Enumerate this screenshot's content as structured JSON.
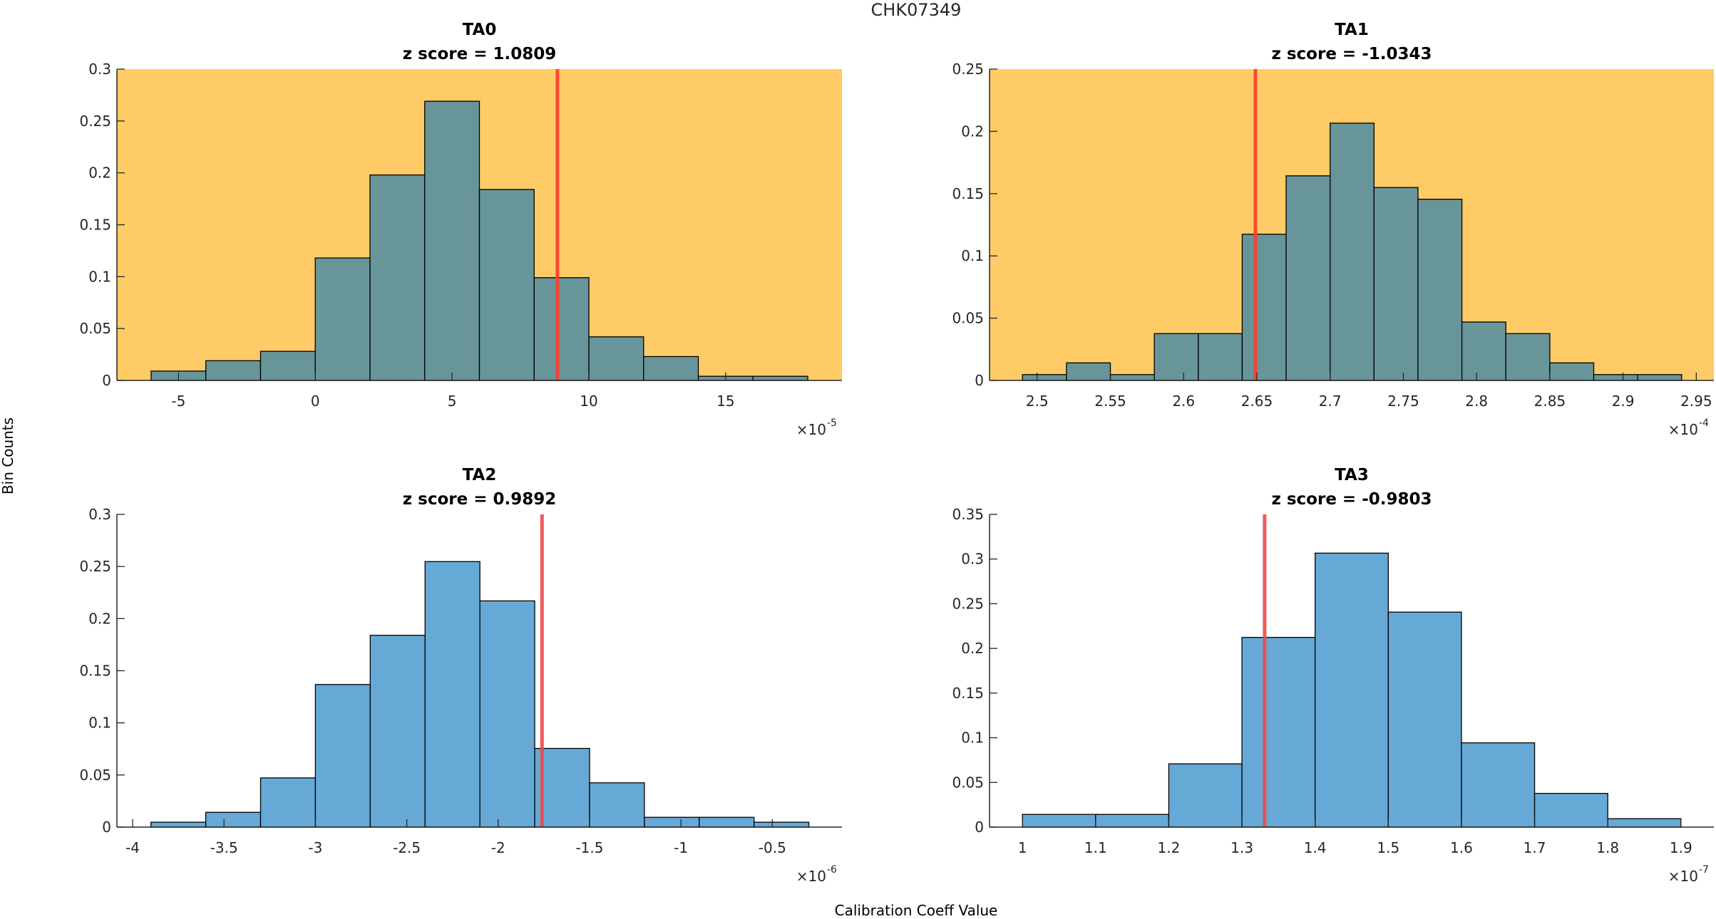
{
  "figure": {
    "title": "CHK07349",
    "ylabel": "Bin Counts",
    "xlabel": "Calibration Coeff Value"
  },
  "colors": {
    "highlight_background": "#FECB66",
    "normal_background": "#FFFFFF",
    "highlight_bar": "#689599",
    "normal_bar": "#66A9D6",
    "bar_edge": "#000000",
    "marker_line": "#FF3B2A",
    "marker_line_normal": "#F04848",
    "axis": "#262626"
  },
  "chart_data": [
    {
      "type": "bar",
      "name": "TA0",
      "title": "TA0",
      "subtitle": "z score = 1.0809",
      "z_score": 1.0809,
      "highlighted": true,
      "xlabel": "",
      "ylabel": "",
      "x_exponent": "-5",
      "x_multiplier_label": "×10",
      "bin_edges": [
        -6,
        -4,
        -2,
        0,
        2,
        4,
        6,
        8,
        10,
        12,
        14,
        16,
        18
      ],
      "values": [
        0.009,
        0.019,
        0.028,
        0.118,
        0.198,
        0.269,
        0.184,
        0.099,
        0.042,
        0.023,
        0.004,
        0.004
      ],
      "marker_x": 8.85,
      "xlim": [
        -7.25,
        19.25
      ],
      "ylim": [
        0,
        0.3
      ],
      "xticks": [
        -5,
        0,
        5,
        10,
        15
      ],
      "xtick_labels": [
        "-5",
        "0",
        "5",
        "10",
        "15"
      ],
      "yticks": [
        0,
        0.05,
        0.1,
        0.15,
        0.2,
        0.25,
        0.3
      ],
      "ytick_labels": [
        "0",
        "0.05",
        "0.1",
        "0.15",
        "0.2",
        "0.25",
        "0.3"
      ],
      "grid": false
    },
    {
      "type": "bar",
      "name": "TA1",
      "title": "TA1",
      "subtitle": "z score = -1.0343",
      "z_score": -1.0343,
      "highlighted": true,
      "xlabel": "",
      "ylabel": "",
      "x_exponent": "-4",
      "x_multiplier_label": "×10",
      "bin_edges": [
        2.49,
        2.52,
        2.55,
        2.58,
        2.61,
        2.64,
        2.67,
        2.7,
        2.73,
        2.76,
        2.79,
        2.82,
        2.85,
        2.88,
        2.91,
        2.94
      ],
      "values": [
        0.0047,
        0.0141,
        0.0047,
        0.0376,
        0.0376,
        0.1174,
        0.1643,
        0.2066,
        0.1549,
        0.1455,
        0.0469,
        0.0376,
        0.0141,
        0.0047,
        0.0047
      ],
      "marker_x": 2.649,
      "xlim": [
        2.4675,
        2.962
      ],
      "ylim": [
        0,
        0.25
      ],
      "xticks": [
        2.5,
        2.55,
        2.6,
        2.65,
        2.7,
        2.75,
        2.8,
        2.85,
        2.9,
        2.95
      ],
      "xtick_labels": [
        "2.5",
        "2.55",
        "2.6",
        "2.65",
        "2.7",
        "2.75",
        "2.8",
        "2.85",
        "2.9",
        "2.95"
      ],
      "yticks": [
        0,
        0.05,
        0.1,
        0.15,
        0.2,
        0.25
      ],
      "ytick_labels": [
        "0",
        "0.05",
        "0.1",
        "0.15",
        "0.2",
        "0.25"
      ],
      "grid": false
    },
    {
      "type": "bar",
      "name": "TA2",
      "title": "TA2",
      "subtitle": "z score = 0.9892",
      "z_score": 0.9892,
      "highlighted": false,
      "xlabel": "",
      "ylabel": "",
      "x_exponent": "-6",
      "x_multiplier_label": "×10",
      "bin_edges": [
        -3.9,
        -3.6,
        -3.3,
        -3.0,
        -2.7,
        -2.4,
        -2.1,
        -1.8,
        -1.5,
        -1.2,
        -0.9,
        -0.6,
        -0.3
      ],
      "values": [
        0.0047,
        0.0142,
        0.0472,
        0.1368,
        0.184,
        0.2547,
        0.217,
        0.0755,
        0.0425,
        0.0094,
        0.0094,
        0.0047
      ],
      "marker_x": -1.76,
      "xlim": [
        -4.086,
        -0.119
      ],
      "ylim": [
        0,
        0.3
      ],
      "xticks": [
        -4,
        -3.5,
        -3,
        -2.5,
        -2,
        -1.5,
        -1,
        -0.5
      ],
      "xtick_labels": [
        "-4",
        "-3.5",
        "-3",
        "-2.5",
        "-2",
        "-1.5",
        "-1",
        "-0.5"
      ],
      "yticks": [
        0,
        0.05,
        0.1,
        0.15,
        0.2,
        0.25,
        0.3
      ],
      "ytick_labels": [
        "0",
        "0.05",
        "0.1",
        "0.15",
        "0.2",
        "0.25",
        "0.3"
      ],
      "grid": false
    },
    {
      "type": "bar",
      "name": "TA3",
      "title": "TA3",
      "subtitle": "z score = -0.9803",
      "z_score": -0.9803,
      "highlighted": false,
      "xlabel": "",
      "ylabel": "",
      "x_exponent": "-7",
      "x_multiplier_label": "×10",
      "bin_edges": [
        1.0,
        1.1,
        1.2,
        1.3,
        1.4,
        1.5,
        1.6,
        1.7,
        1.8,
        1.9
      ],
      "values": [
        0.0142,
        0.0142,
        0.0708,
        0.2123,
        0.3066,
        0.2406,
        0.0943,
        0.0377,
        0.0094
      ],
      "marker_x": 1.331,
      "xlim": [
        0.955,
        1.945
      ],
      "ylim": [
        0,
        0.35
      ],
      "xticks": [
        1,
        1.1,
        1.2,
        1.3,
        1.4,
        1.5,
        1.6,
        1.7,
        1.8,
        1.9
      ],
      "xtick_labels": [
        "1",
        "1.1",
        "1.2",
        "1.3",
        "1.4",
        "1.5",
        "1.6",
        "1.7",
        "1.8",
        "1.9"
      ],
      "yticks": [
        0,
        0.05,
        0.1,
        0.15,
        0.2,
        0.25,
        0.3,
        0.35
      ],
      "ytick_labels": [
        "0",
        "0.05",
        "0.1",
        "0.15",
        "0.2",
        "0.25",
        "0.3",
        "0.35"
      ],
      "grid": false
    }
  ]
}
